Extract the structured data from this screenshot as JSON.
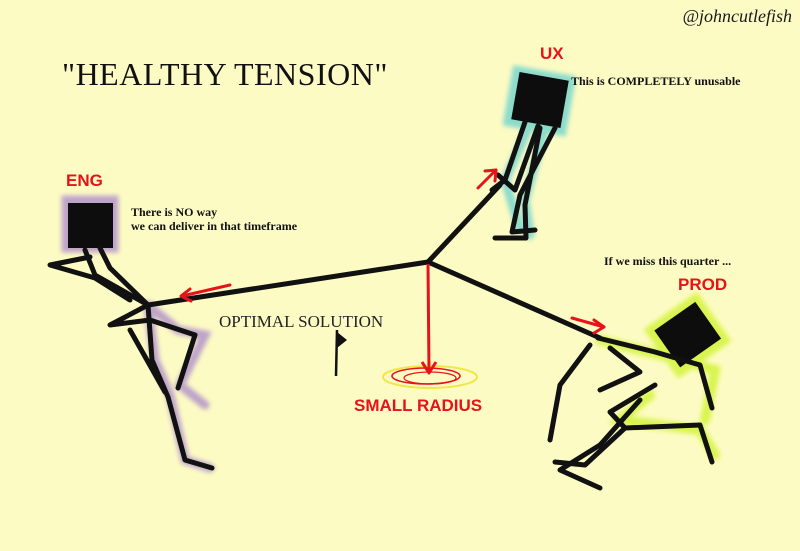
{
  "handle": "@johncutlefish",
  "title": "\"HEALTHY TENSION\"",
  "figures": {
    "eng": {
      "label": "ENG",
      "quote_line1": "There is NO way",
      "quote_line2": "we can deliver in that timeframe"
    },
    "ux": {
      "label": "UX",
      "quote": "This is COMPLETELY unusable"
    },
    "prod": {
      "label": "PROD",
      "quote": "If we miss this quarter ..."
    }
  },
  "center": {
    "optimal_label": "OPTIMAL SOLUTION",
    "radius_label": "SMALL RADIUS"
  },
  "colors": {
    "background": "#fdfbc4",
    "accent_red": "#e8121a",
    "ink": "#111111",
    "eng_glow": "#8a5ccf",
    "ux_glow": "#3fc6d0",
    "prod_glow": "#c9f21e",
    "target_ring": "#f2e64a"
  },
  "icons": {
    "flag": "flag-icon",
    "target": "target-icon"
  }
}
